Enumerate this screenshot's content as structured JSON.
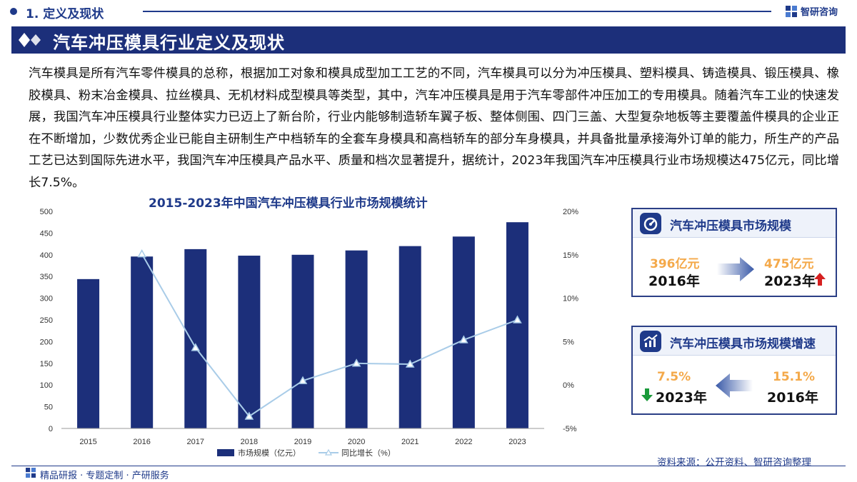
{
  "header": {
    "section_title": "1. 定义及现状",
    "logo_text": "智研咨询"
  },
  "banner": {
    "title": "汽车冲压模具行业定义及现状"
  },
  "body_text": "汽车模具是所有汽车零件模具的总称，根据加工对象和模具成型加工工艺的不同，汽车模具可以分为冲压模具、塑料模具、铸造模具、锻压模具、橡胶模具、粉末冶金模具、拉丝模具、无机材料成型模具等类型，其中，汽车冲压模具是用于汽车零部件冲压加工的专用模具。随着汽车工业的快速发展，我国汽车冲压模具行业整体实力已迈上了新台阶，行业内能够制造轿车翼子板、整体侧围、四门三盖、大型复杂地板等主要覆盖件模具的企业正在不断增加，少数优秀企业已能自主研制生产中档轿车的全套车身模具和高档轿车的部分车身模具，并具备批量承接海外订单的能力，所生产的产品工艺已达到国际先进水平，我国汽车冲压模具产品水平、质量和档次显著提升，据统计，2023年我国汽车冲压模具行业市场规模达475亿元，同比增长7.5%。",
  "chart_data": {
    "type": "bar+line",
    "title": "2015-2023年中国汽车冲压模具行业市场规模统计",
    "categories": [
      "2015",
      "2016",
      "2017",
      "2018",
      "2019",
      "2020",
      "2021",
      "2022",
      "2023"
    ],
    "series": [
      {
        "name": "市场规模（亿元）",
        "type": "bar",
        "axis": "left",
        "values": [
          344,
          396,
          413,
          398,
          400,
          410,
          420,
          442,
          475
        ]
      },
      {
        "name": "同比增长（%）",
        "type": "line",
        "axis": "right",
        "values": [
          null,
          15.1,
          4.3,
          -3.6,
          0.5,
          2.5,
          2.4,
          5.2,
          7.5
        ]
      }
    ],
    "left_axis": {
      "min": 0,
      "max": 500,
      "ticks": [
        "0",
        "50",
        "100",
        "150",
        "200",
        "250",
        "300",
        "350",
        "400",
        "450",
        "500"
      ]
    },
    "right_axis": {
      "min": -5,
      "max": 20,
      "ticks": [
        "-5%",
        "0%",
        "5%",
        "10%",
        "15%",
        "20%"
      ]
    },
    "grid": false,
    "legend": "bottom",
    "colors": {
      "bar": "#1c2f7a",
      "line": "#a9cce8",
      "line_marker": "#ffffff"
    }
  },
  "cards": {
    "size": {
      "title": "汽车冲压模具市场规模",
      "from_value": "396亿元",
      "from_year": "2016年",
      "to_value": "475亿元",
      "to_year": "2023年",
      "trend": "up"
    },
    "growth": {
      "title": "汽车冲压模具市场规模增速",
      "left_value": "7.5%",
      "left_year": "2023年",
      "right_value": "15.1%",
      "right_year": "2016年",
      "trend": "down"
    }
  },
  "source": "资料来源：公开资料、智研咨询整理",
  "footer": "精品研报 · 专题定制 · 产研服务",
  "colors": {
    "brand": "#1f3a8a",
    "accent": "#f4a94a",
    "up": "#d62020",
    "down": "#1a9a3a"
  }
}
